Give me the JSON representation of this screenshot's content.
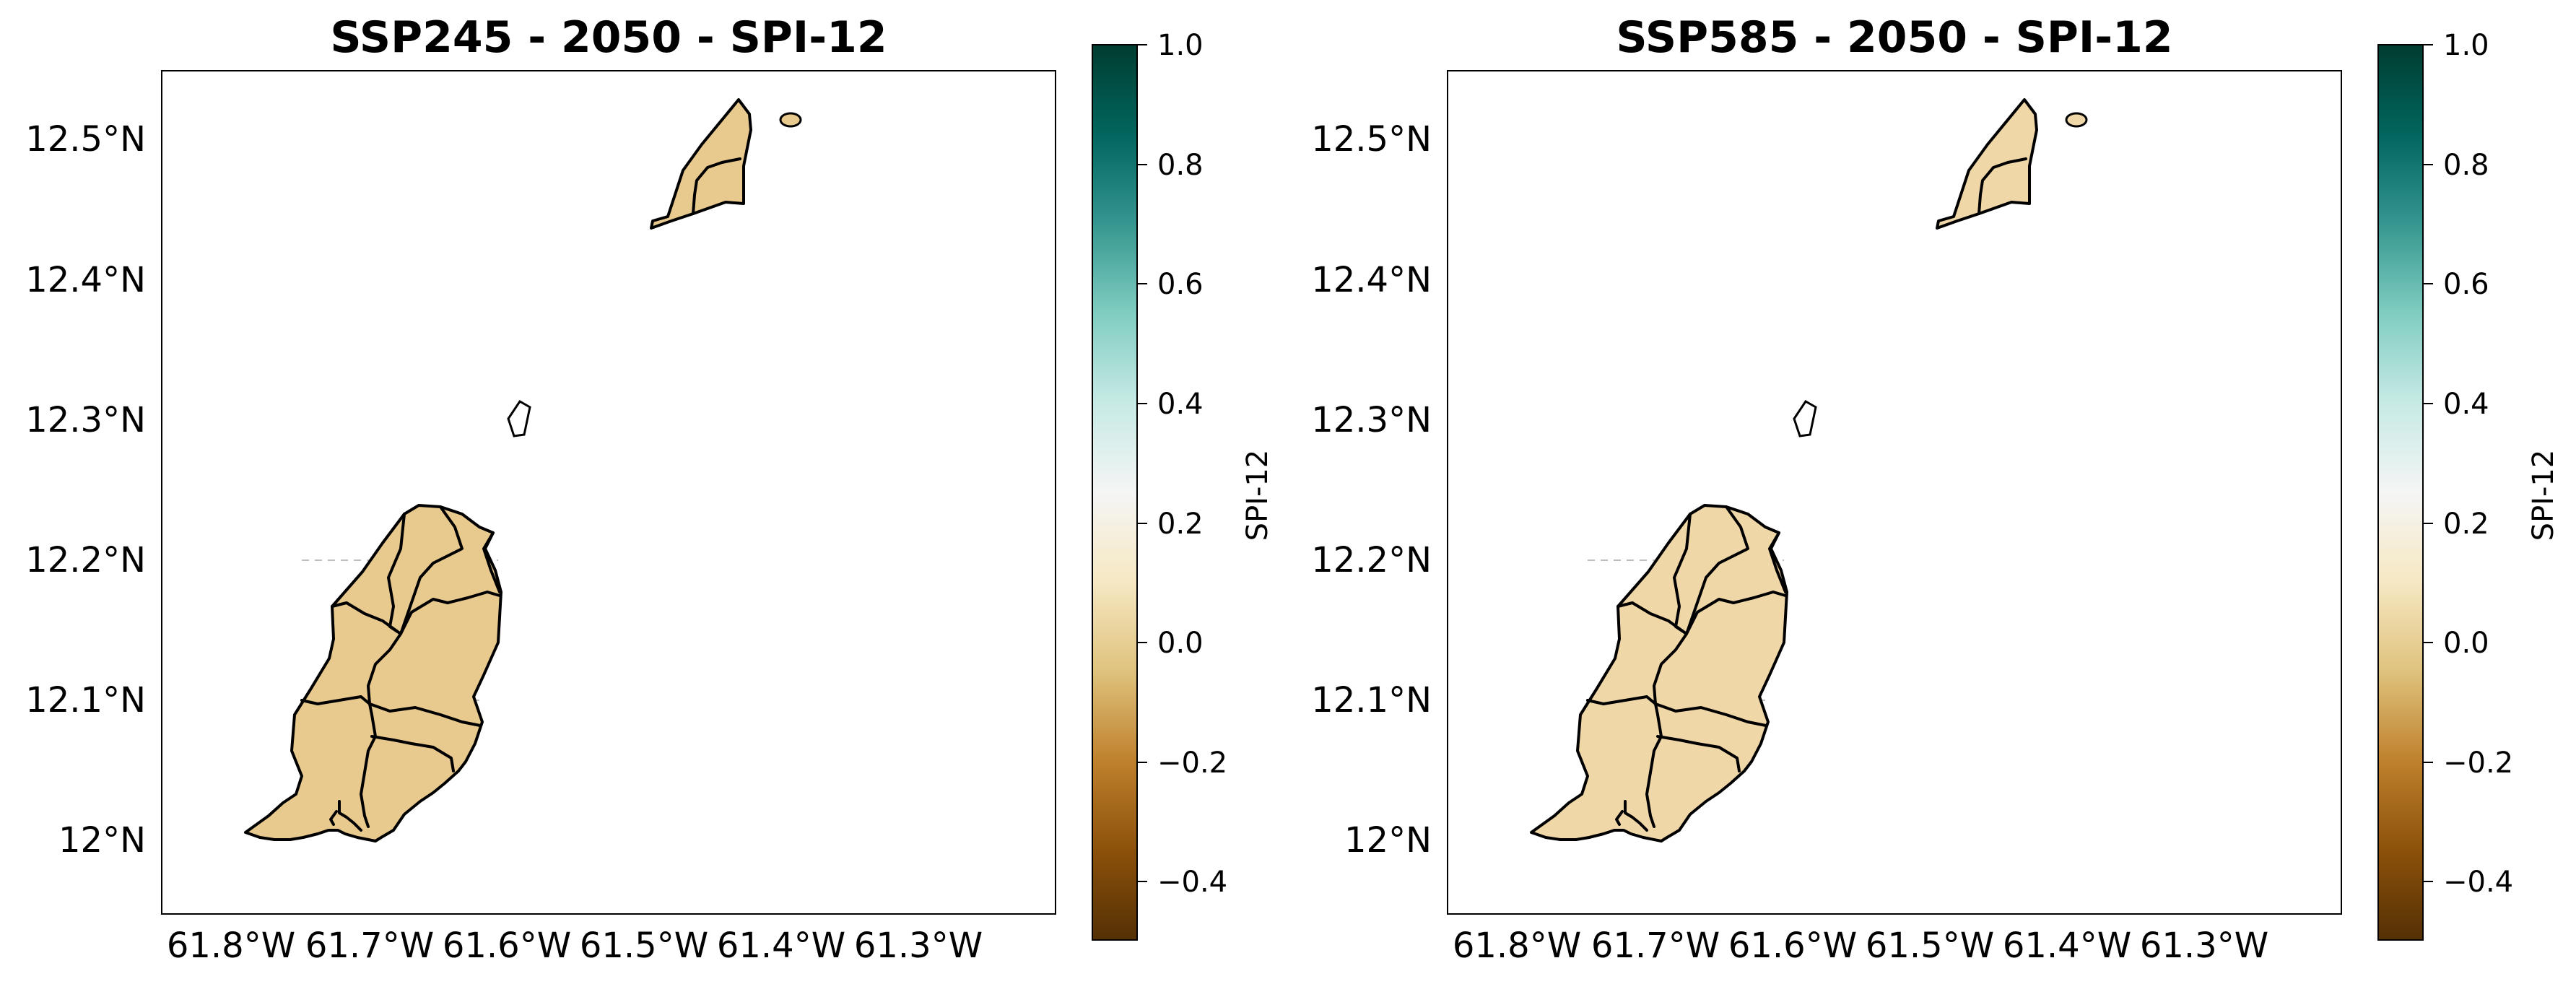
{
  "colorbar_stops": [
    "#543005",
    "#8c510a",
    "#bf812d",
    "#dfc27d",
    "#f6e8c3",
    "#f5f5f5",
    "#c7eae5",
    "#80cdc1",
    "#35978f",
    "#01665e",
    "#003c30"
  ],
  "colorbar_ticks": [
    "1.0",
    "0.8",
    "0.6",
    "0.4",
    "0.2",
    "0.0",
    "−0.2",
    "−0.4"
  ],
  "colorbar_label": "SPI-12",
  "lat_ticks": [
    "12.5°N",
    "12.4°N",
    "12.3°N",
    "12.2°N",
    "12.1°N",
    "12°N"
  ],
  "lon_ticks": [
    "61.8°W",
    "61.7°W",
    "61.6°W",
    "61.5°W",
    "61.4°W",
    "61.3°W"
  ],
  "panels": [
    {
      "title": "SSP245 - 2050 - SPI-12",
      "fill_color": "#e8c98e",
      "spi_value": -0.02
    },
    {
      "title": "SSP585 - 2050 - SPI-12",
      "fill_color": "#f0d7a8",
      "spi_value": 0.02
    }
  ]
}
